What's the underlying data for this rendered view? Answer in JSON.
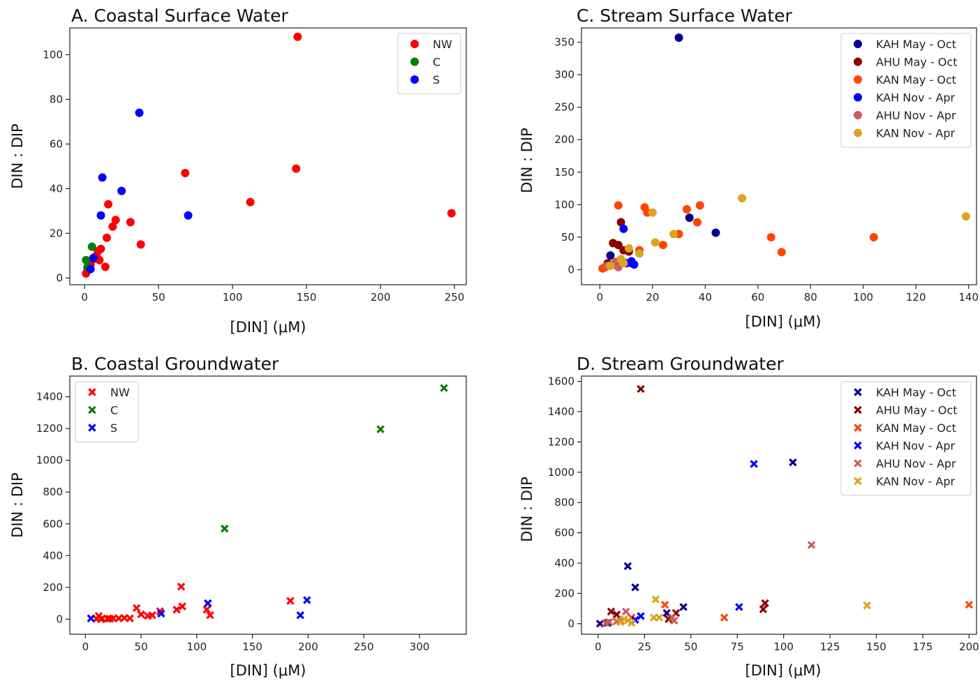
{
  "chart_data": [
    {
      "type": "scatter",
      "title": "A. Coastal Surface Water",
      "xlabel": "[DIN] (μM)",
      "ylabel": "DIN : DIP",
      "xlim": [
        -10,
        258
      ],
      "ylim": [
        -3,
        112
      ],
      "xticks": [
        0,
        50,
        100,
        150,
        200,
        250
      ],
      "yticks": [
        0,
        20,
        40,
        60,
        80,
        100
      ],
      "marker": "circle",
      "legend": "top-right",
      "series": [
        {
          "name": "NW",
          "color": "#ff0000",
          "points": [
            [
              144,
              108
            ],
            [
              143,
              49
            ],
            [
              68,
              47
            ],
            [
              112,
              34
            ],
            [
              248,
              29
            ],
            [
              38,
              15
            ],
            [
              31,
              25
            ],
            [
              21,
              26
            ],
            [
              19,
              23
            ],
            [
              16,
              33
            ],
            [
              15,
              18
            ],
            [
              14,
              5
            ],
            [
              11,
              13
            ],
            [
              10,
              8
            ],
            [
              9,
              12
            ],
            [
              8,
              10
            ],
            [
              5,
              8
            ],
            [
              4,
              6
            ],
            [
              2,
              4
            ],
            [
              1,
              2
            ]
          ]
        },
        {
          "name": "C",
          "color": "#008000",
          "points": [
            [
              5,
              14
            ],
            [
              1,
              8
            ],
            [
              2,
              5
            ],
            [
              3,
              4
            ]
          ]
        },
        {
          "name": "S",
          "color": "#0000ff",
          "points": [
            [
              37,
              74
            ],
            [
              12,
              45
            ],
            [
              25,
              39
            ],
            [
              70,
              28
            ],
            [
              11,
              28
            ],
            [
              6,
              9
            ],
            [
              4,
              4
            ]
          ]
        }
      ]
    },
    {
      "type": "scatter",
      "title": "B. Coastal Groundwater",
      "xlabel": "[DIN] (μM)",
      "ylabel": "DIN : DIP",
      "xlim": [
        -14,
        342
      ],
      "ylim": [
        -95,
        1530
      ],
      "xticks": [
        0,
        50,
        100,
        150,
        200,
        250,
        300
      ],
      "yticks": [
        0,
        200,
        400,
        600,
        800,
        1000,
        1200,
        1400
      ],
      "marker": "x",
      "legend": "top-left",
      "series": [
        {
          "name": "NW",
          "color": "#ff0000",
          "points": [
            [
              86,
              205
            ],
            [
              184,
              115
            ],
            [
              87,
              80
            ],
            [
              82,
              60
            ],
            [
              46,
              70
            ],
            [
              67,
              50
            ],
            [
              110,
              100
            ],
            [
              109,
              60
            ],
            [
              112,
              25
            ],
            [
              50,
              30
            ],
            [
              56,
              20
            ],
            [
              60,
              25
            ],
            [
              40,
              5
            ],
            [
              35,
              8
            ],
            [
              30,
              5
            ],
            [
              25,
              5
            ],
            [
              20,
              2
            ],
            [
              15,
              5
            ],
            [
              12,
              20
            ],
            [
              10,
              2
            ],
            [
              14,
              0
            ],
            [
              22,
              3
            ]
          ]
        },
        {
          "name": "C",
          "color": "#008000",
          "points": [
            [
              322,
              1455
            ],
            [
              265,
              1195
            ],
            [
              125,
              570
            ]
          ]
        },
        {
          "name": "S",
          "color": "#0000ff",
          "points": [
            [
              199,
              120
            ],
            [
              110,
              100
            ],
            [
              193,
              25
            ],
            [
              68,
              35
            ],
            [
              5,
              5
            ]
          ]
        }
      ]
    },
    {
      "type": "scatter",
      "title": "C. Stream Surface Water",
      "xlabel": "[DIN] (μM)",
      "ylabel": "DIN : DIP",
      "xlim": [
        -7,
        143
      ],
      "ylim": [
        -23,
        372
      ],
      "xticks": [
        0,
        20,
        40,
        60,
        80,
        100,
        120,
        140
      ],
      "yticks": [
        0,
        50,
        100,
        150,
        200,
        250,
        300,
        350
      ],
      "marker": "circle",
      "legend": "top-right",
      "series": [
        {
          "name": "KAH May - Oct",
          "color": "#00008b",
          "points": [
            [
              30,
              357
            ],
            [
              34,
              80
            ],
            [
              44,
              57
            ],
            [
              4,
              22
            ],
            [
              8,
              16
            ],
            [
              12,
              10
            ],
            [
              6,
              8
            ]
          ]
        },
        {
          "name": "AHU May - Oct",
          "color": "#8b0000",
          "points": [
            [
              8,
              73
            ],
            [
              5,
              41
            ],
            [
              7,
              38
            ],
            [
              9,
              30
            ],
            [
              11,
              28
            ],
            [
              3,
              10
            ],
            [
              2,
              4
            ]
          ]
        },
        {
          "name": "KAN May - Oct",
          "color": "#ff4500",
          "points": [
            [
              7,
              99
            ],
            [
              17,
              96
            ],
            [
              33,
              93
            ],
            [
              38,
              99
            ],
            [
              18,
              88
            ],
            [
              37,
              73
            ],
            [
              65,
              50
            ],
            [
              104,
              50
            ],
            [
              69,
              27
            ],
            [
              30,
              55
            ],
            [
              24,
              38
            ],
            [
              15,
              30
            ],
            [
              1,
              2
            ],
            [
              2,
              4
            ]
          ]
        },
        {
          "name": "KAH Nov - Apr",
          "color": "#0000ff",
          "points": [
            [
              9,
              63
            ],
            [
              12,
              13
            ],
            [
              13,
              8
            ],
            [
              10,
              10
            ]
          ]
        },
        {
          "name": "AHU Nov - Apr",
          "color": "#cd5c5c",
          "points": [
            [
              7,
              4
            ],
            [
              5,
              8
            ],
            [
              6,
              12
            ],
            [
              3,
              6
            ]
          ]
        },
        {
          "name": "KAN Nov - Apr",
          "color": "#daa520",
          "points": [
            [
              54,
              110
            ],
            [
              139,
              82
            ],
            [
              20,
              88
            ],
            [
              28,
              55
            ],
            [
              21,
              42
            ],
            [
              11,
              33
            ],
            [
              15,
              25
            ],
            [
              8,
              16
            ],
            [
              9,
              10
            ],
            [
              4,
              6
            ]
          ]
        }
      ]
    },
    {
      "type": "scatter",
      "title": "D. Stream Groundwater",
      "xlabel": "[DIN] (μM)",
      "ylabel": "DIN : DIP",
      "xlim": [
        -9,
        204
      ],
      "ylim": [
        -70,
        1635
      ],
      "xticks": [
        0,
        25,
        50,
        75,
        100,
        125,
        150,
        175,
        200
      ],
      "yticks": [
        0,
        200,
        400,
        600,
        800,
        1000,
        1200,
        1400,
        1600
      ],
      "marker": "x",
      "legend": "top-right",
      "series": [
        {
          "name": "KAH May - Oct",
          "color": "#00008b",
          "points": [
            [
              105,
              1065
            ],
            [
              16,
              380
            ],
            [
              20,
              240
            ],
            [
              46,
              110
            ],
            [
              37,
              70
            ],
            [
              1,
              0
            ],
            [
              5,
              5
            ]
          ]
        },
        {
          "name": "AHU May - Oct",
          "color": "#8b0000",
          "points": [
            [
              23,
              1550
            ],
            [
              90,
              135
            ],
            [
              89,
              95
            ],
            [
              7,
              80
            ],
            [
              42,
              70
            ],
            [
              10,
              60
            ],
            [
              38,
              30
            ]
          ]
        },
        {
          "name": "KAN May - Oct",
          "color": "#ff4500",
          "points": [
            [
              200,
              125
            ],
            [
              36,
              125
            ],
            [
              68,
              40
            ],
            [
              18,
              40
            ],
            [
              12,
              20
            ]
          ]
        },
        {
          "name": "KAH Nov - Apr",
          "color": "#0000ff",
          "points": [
            [
              84,
              1055
            ],
            [
              76,
              110
            ],
            [
              23,
              50
            ],
            [
              20,
              25
            ]
          ]
        },
        {
          "name": "AHU Nov - Apr",
          "color": "#cd5c5c",
          "points": [
            [
              115,
              520
            ],
            [
              15,
              80
            ],
            [
              41,
              20
            ],
            [
              40,
              40
            ],
            [
              6,
              10
            ],
            [
              10,
              15
            ],
            [
              4,
              5
            ]
          ]
        },
        {
          "name": "KAN Nov - Apr",
          "color": "#daa520",
          "points": [
            [
              145,
              120
            ],
            [
              31,
              160
            ],
            [
              30,
              40
            ],
            [
              33,
              40
            ],
            [
              14,
              30
            ],
            [
              16,
              20
            ],
            [
              12,
              10
            ],
            [
              18,
              5
            ]
          ]
        }
      ]
    }
  ]
}
